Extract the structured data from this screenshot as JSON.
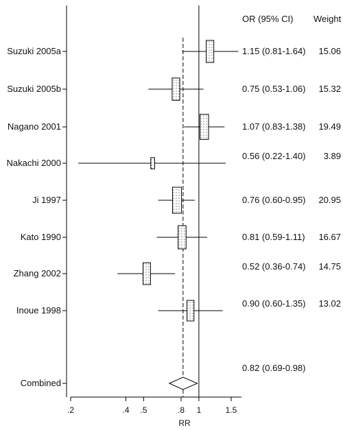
{
  "chart_data": {
    "type": "forest",
    "xlabel": "RR",
    "x_scale": "log",
    "xlim": [
      0.2,
      1.7
    ],
    "xticks": [
      {
        "value": 0.2,
        "label": ".2"
      },
      {
        "value": 0.4,
        "label": ".4"
      },
      {
        "value": 0.5,
        "label": ".5"
      },
      {
        "value": 0.8,
        "label": ".8"
      },
      {
        "value": 1.0,
        "label": "1"
      },
      {
        "value": 1.5,
        "label": "1.5"
      }
    ],
    "columns": {
      "or_header": "OR (95% CI)",
      "weight_header": "Weight"
    },
    "null_line": 1.0,
    "studies": [
      {
        "label": "Suzuki 2005a",
        "or": 1.15,
        "lo": 0.81,
        "hi": 1.64,
        "or_text": "1.15 (0.81-1.64)",
        "weight": "15.06"
      },
      {
        "label": "Suzuki 2005b",
        "or": 0.75,
        "lo": 0.53,
        "hi": 1.06,
        "or_text": "0.75 (0.53-1.06)",
        "weight": "15.32"
      },
      {
        "label": "Nagano 2001",
        "or": 1.07,
        "lo": 0.83,
        "hi": 1.38,
        "or_text": "1.07 (0.83-1.38)",
        "weight": "19.49"
      },
      {
        "label": "Nakachi 2000",
        "or": 0.56,
        "lo": 0.22,
        "hi": 1.4,
        "or_text": "0.56 (0.22-1.40)",
        "weight": "3.89"
      },
      {
        "label": "Ji 1997",
        "or": 0.76,
        "lo": 0.6,
        "hi": 0.95,
        "or_text": "0.76 (0.60-0.95)",
        "weight": "20.95"
      },
      {
        "label": "Kato 1990",
        "or": 0.81,
        "lo": 0.59,
        "hi": 1.11,
        "or_text": "0.81 (0.59-1.11)",
        "weight": "16.67"
      },
      {
        "label": "Zhang 2002",
        "or": 0.52,
        "lo": 0.36,
        "hi": 0.74,
        "or_text": "0.52 (0.36-0.74)",
        "weight": "14.75"
      },
      {
        "label": "Inoue 1998",
        "or": 0.9,
        "lo": 0.6,
        "hi": 1.35,
        "or_text": "0.90 (0.60-1.35)",
        "weight": "13.02"
      }
    ],
    "combined": {
      "label": "Combined",
      "or": 0.82,
      "lo": 0.69,
      "hi": 0.98,
      "or_text": "0.82 (0.69-0.98)"
    }
  }
}
